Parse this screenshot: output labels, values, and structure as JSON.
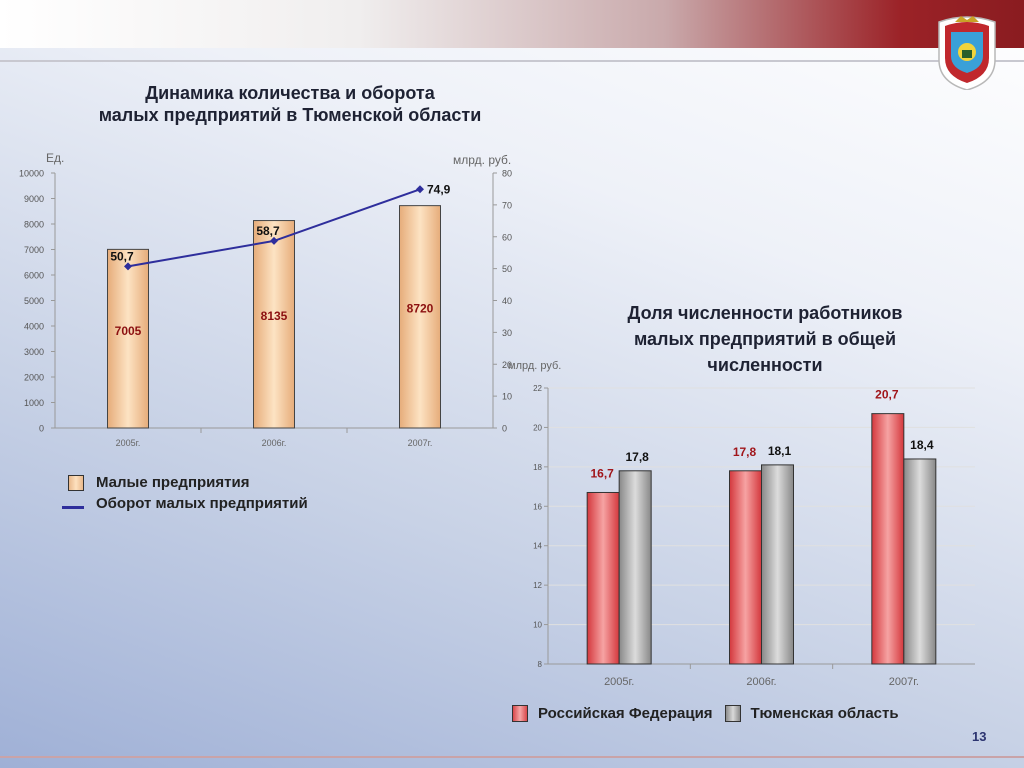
{
  "header": {
    "crest_icon": "tyumen-coat-of-arms"
  },
  "colors": {
    "accent": "#9b2227",
    "line_series": "#2e2e9c"
  },
  "chart_data": [
    {
      "type": "bar",
      "title": "Динамика количества и оборота малых предприятий в Тюменской области",
      "title_lines": [
        "Динамика количества и оборота",
        "малых предприятий в Тюменской области"
      ],
      "categories": [
        "2005г.",
        "2006г.",
        "2007г."
      ],
      "ylabel": "Ед.",
      "y2label": "млрд. руб.",
      "ylim": [
        0,
        10000
      ],
      "y_ticks": [
        0,
        1000,
        2000,
        3000,
        4000,
        5000,
        6000,
        7000,
        8000,
        9000,
        10000
      ],
      "y2lim": [
        0,
        80
      ],
      "y2_ticks": [
        0,
        10,
        20,
        30,
        40,
        50,
        60,
        70,
        80
      ],
      "series": [
        {
          "name": "Малые предприятия",
          "type": "bar",
          "axis": "left",
          "values": [
            7005,
            8135,
            8720
          ],
          "labels": [
            "7005",
            "8135",
            "8720"
          ]
        },
        {
          "name": "Оборот малых предприятий",
          "type": "line",
          "axis": "right",
          "values": [
            50.7,
            58.7,
            74.9
          ],
          "labels": [
            "50,7",
            "58,7",
            "74,9"
          ]
        }
      ],
      "legend": "bottom-left"
    },
    {
      "type": "bar",
      "title": "Доля численности работников малых предприятий в общей численности",
      "title_lines": [
        "Доля численности работников",
        "малых предприятий в общей",
        "численности"
      ],
      "categories": [
        "2005г.",
        "2006г.",
        "2007г."
      ],
      "ylabel": "млрд. руб.",
      "ylim": [
        8,
        22
      ],
      "y_ticks": [
        8,
        10,
        12,
        14,
        16,
        18,
        20,
        22
      ],
      "series": [
        {
          "name": "Российская Федерация",
          "values": [
            16.7,
            17.8,
            20.7
          ],
          "labels": [
            "16,7",
            "17,8",
            "20,7"
          ]
        },
        {
          "name": "Тюменская область",
          "values": [
            17.8,
            18.1,
            18.4
          ],
          "labels": [
            "17,8",
            "18,1",
            "18,4"
          ]
        }
      ],
      "legend": "bottom"
    }
  ],
  "footer": {
    "page_number": "13"
  }
}
